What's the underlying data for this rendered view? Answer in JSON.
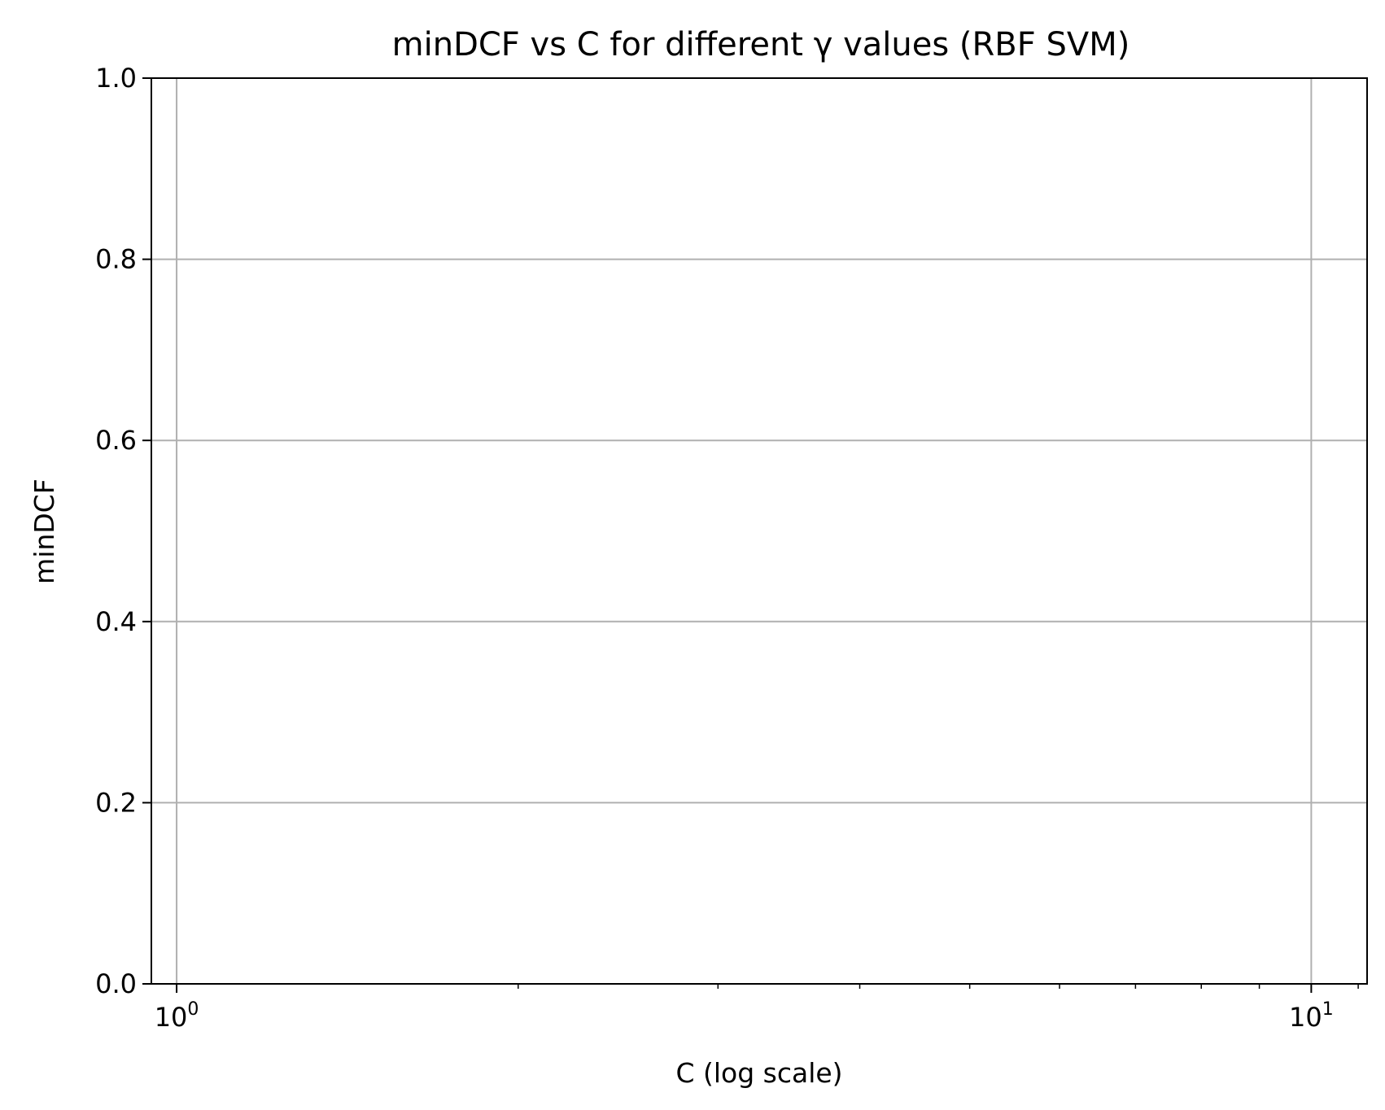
{
  "chart_data": {
    "type": "line",
    "title": "minDCF vs C for different γ values (RBF SVM)",
    "xlabel": "C (log scale)",
    "ylabel": "minDCF",
    "x_scale": "log",
    "xlim": [
      0.95,
      11.2
    ],
    "ylim": [
      0.0,
      1.0
    ],
    "grid": true,
    "series": [],
    "x_ticks": [
      {
        "value": 1,
        "base": "10",
        "exp": "0"
      },
      {
        "value": 10,
        "base": "10",
        "exp": "1"
      }
    ],
    "x_minor_ticks": [
      2,
      3,
      4,
      5,
      6,
      7,
      8,
      9
    ],
    "y_ticks": [
      {
        "value": 0.0,
        "label": "0.0"
      },
      {
        "value": 0.2,
        "label": "0.2"
      },
      {
        "value": 0.4,
        "label": "0.4"
      },
      {
        "value": 0.6,
        "label": "0.6"
      },
      {
        "value": 0.8,
        "label": "0.8"
      },
      {
        "value": 1.0,
        "label": "1.0"
      }
    ],
    "colors": {
      "axes": "#000000",
      "grid": "#b0b0b0",
      "background": "#ffffff"
    }
  }
}
